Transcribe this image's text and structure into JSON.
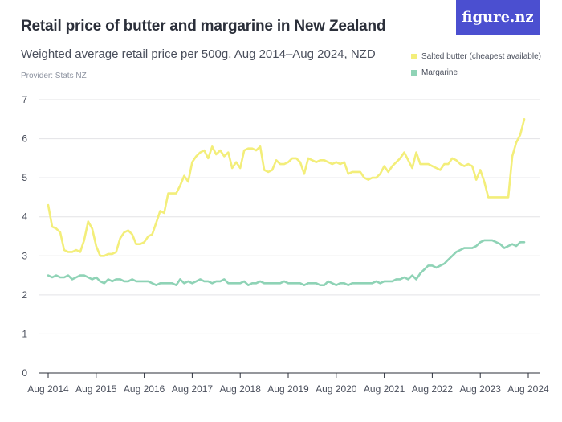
{
  "header": {
    "title": "Retail price of butter and margarine in New Zealand",
    "subtitle": "Weighted average retail price per 500g, Aug 2014–Aug 2024, NZD",
    "provider": "Provider: Stats NZ",
    "logo_text": "figure.nz"
  },
  "colors": {
    "butter": "#f3ee7a",
    "margarine": "#8fd3b6",
    "grid": "#e3e3e6",
    "axis": "#2b2f3a",
    "logo_bg": "#4b4fd0"
  },
  "chart_data": {
    "type": "line",
    "xlabel": "",
    "ylabel": "",
    "ylim": [
      0,
      7
    ],
    "yticks": [
      "0",
      "1",
      "2",
      "3",
      "4",
      "5",
      "6",
      "7"
    ],
    "xticks": [
      "Aug 2014",
      "Aug 2015",
      "Aug 2016",
      "Aug 2017",
      "Aug 2018",
      "Aug 2019",
      "Aug 2020",
      "Aug 2021",
      "Aug 2022",
      "Aug 2023",
      "Aug 2024"
    ],
    "grid": true,
    "legend_position": "top-right",
    "x_start": "2014-08",
    "x_frequency": "monthly",
    "series": [
      {
        "name": "Salted butter (cheapest available)",
        "values": [
          4.3,
          3.75,
          3.7,
          3.6,
          3.15,
          3.1,
          3.1,
          3.15,
          3.1,
          3.4,
          3.88,
          3.7,
          3.25,
          3.0,
          3.0,
          3.05,
          3.05,
          3.1,
          3.45,
          3.6,
          3.65,
          3.55,
          3.3,
          3.3,
          3.35,
          3.5,
          3.55,
          3.85,
          4.15,
          4.1,
          4.6,
          4.6,
          4.6,
          4.8,
          5.05,
          4.9,
          5.4,
          5.55,
          5.65,
          5.7,
          5.5,
          5.8,
          5.6,
          5.7,
          5.55,
          5.65,
          5.25,
          5.4,
          5.25,
          5.7,
          5.75,
          5.75,
          5.7,
          5.8,
          5.2,
          5.15,
          5.2,
          5.45,
          5.35,
          5.35,
          5.4,
          5.5,
          5.5,
          5.4,
          5.1,
          5.5,
          5.45,
          5.4,
          5.45,
          5.45,
          5.4,
          5.35,
          5.4,
          5.35,
          5.4,
          5.1,
          5.15,
          5.15,
          5.15,
          5.0,
          4.95,
          5.0,
          5.0,
          5.1,
          5.3,
          5.15,
          5.3,
          5.4,
          5.5,
          5.65,
          5.45,
          5.25,
          5.65,
          5.35,
          5.35,
          5.35,
          5.3,
          5.25,
          5.2,
          5.35,
          5.35,
          5.5,
          5.45,
          5.35,
          5.3,
          5.35,
          5.3,
          4.95,
          5.2,
          4.9,
          4.5,
          4.5,
          4.5,
          4.5,
          4.5,
          4.5,
          5.55,
          5.9,
          6.1,
          6.5
        ]
      },
      {
        "name": "Margarine",
        "values": [
          2.5,
          2.45,
          2.5,
          2.45,
          2.45,
          2.5,
          2.4,
          2.45,
          2.5,
          2.5,
          2.45,
          2.4,
          2.45,
          2.35,
          2.3,
          2.4,
          2.35,
          2.4,
          2.4,
          2.35,
          2.35,
          2.4,
          2.35,
          2.35,
          2.35,
          2.35,
          2.3,
          2.25,
          2.3,
          2.3,
          2.3,
          2.3,
          2.25,
          2.4,
          2.3,
          2.35,
          2.3,
          2.35,
          2.4,
          2.35,
          2.35,
          2.3,
          2.35,
          2.35,
          2.4,
          2.3,
          2.3,
          2.3,
          2.3,
          2.35,
          2.25,
          2.3,
          2.3,
          2.35,
          2.3,
          2.3,
          2.3,
          2.3,
          2.3,
          2.35,
          2.3,
          2.3,
          2.3,
          2.3,
          2.25,
          2.3,
          2.3,
          2.3,
          2.25,
          2.25,
          2.35,
          2.3,
          2.25,
          2.3,
          2.3,
          2.25,
          2.3,
          2.3,
          2.3,
          2.3,
          2.3,
          2.3,
          2.35,
          2.3,
          2.35,
          2.35,
          2.35,
          2.4,
          2.4,
          2.45,
          2.4,
          2.5,
          2.4,
          2.55,
          2.65,
          2.75,
          2.75,
          2.7,
          2.75,
          2.8,
          2.9,
          3.0,
          3.1,
          3.15,
          3.2,
          3.2,
          3.2,
          3.25,
          3.35,
          3.4,
          3.4,
          3.4,
          3.35,
          3.3,
          3.2,
          3.25,
          3.3,
          3.25,
          3.35,
          3.35
        ]
      }
    ]
  }
}
